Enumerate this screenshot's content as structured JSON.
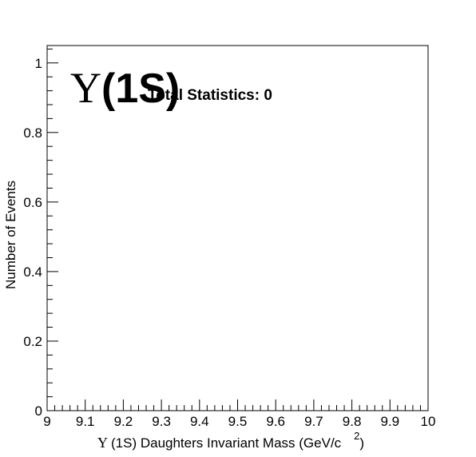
{
  "chart_data": {
    "type": "bar",
    "title_symbol": "Υ",
    "title_text": "(1S)",
    "annotation": "Total Statistics: 0",
    "xlabel_symbol": "Υ",
    "xlabel_text": "(1S) Daughters Invariant Mass (GeV/c",
    "xlabel_superscript": "2",
    "xlabel_close": ")",
    "ylabel": "Number of Events",
    "xlim": [
      9,
      10
    ],
    "ylim": [
      0,
      1.05
    ],
    "x_ticks": [
      9,
      9.1,
      9.2,
      9.3,
      9.4,
      9.5,
      9.6,
      9.7,
      9.8,
      9.9,
      10
    ],
    "x_tick_labels": [
      "9",
      "9.1",
      "9.2",
      "9.3",
      "9.4",
      "9.5",
      "9.6",
      "9.7",
      "9.8",
      "9.9",
      "10"
    ],
    "y_ticks": [
      0,
      0.2,
      0.4,
      0.6,
      0.8,
      1
    ],
    "y_tick_labels": [
      "0",
      "0.2",
      "0.4",
      "0.6",
      "0.8",
      "1"
    ],
    "x": [],
    "values": [],
    "grid": false,
    "legend": "none"
  }
}
